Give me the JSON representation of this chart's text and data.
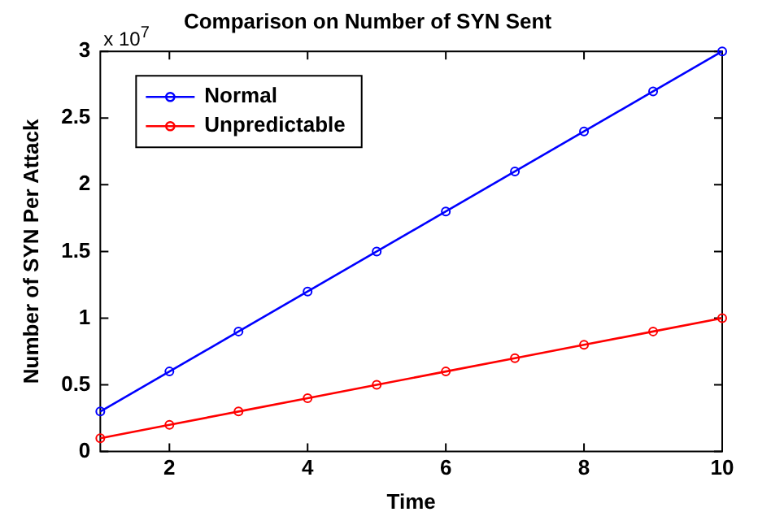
{
  "chart_data": {
    "type": "line",
    "title": "Comparison on Number of SYN Sent",
    "xlabel": "Time",
    "ylabel": "Number of SYN Per Attack",
    "x": [
      1,
      2,
      3,
      4,
      5,
      6,
      7,
      8,
      9,
      10
    ],
    "series": [
      {
        "name": "Normal",
        "color": "#0000ff",
        "values": [
          0.3,
          0.6,
          0.9,
          1.2,
          1.5,
          1.8,
          2.1,
          2.4,
          2.7,
          3.0
        ]
      },
      {
        "name": "Unpredictable",
        "color": "#ff0000",
        "values": [
          0.1,
          0.2,
          0.3,
          0.4,
          0.5,
          0.6,
          0.7,
          0.8,
          0.9,
          1.0
        ]
      }
    ],
    "xlim": [
      1,
      10
    ],
    "xticks": [
      2,
      4,
      6,
      8,
      10
    ],
    "ylim": [
      0,
      3
    ],
    "yticks": [
      0,
      0.5,
      1,
      1.5,
      2,
      2.5,
      3
    ],
    "annotations": [
      "x 10$^{7}$"
    ],
    "legend": "top left",
    "marker": "circle",
    "line_style": "solid",
    "grid": false
  }
}
